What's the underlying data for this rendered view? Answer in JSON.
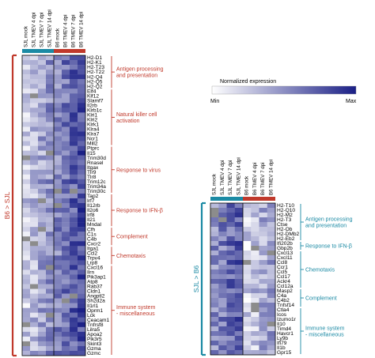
{
  "legend": {
    "title": "Normalized expression",
    "min_label": "Min",
    "max_label": "Max"
  },
  "colors": {
    "sjl": "#1b8aa4",
    "b6": "#c0392b",
    "heat_low": "#ffffff",
    "heat_high": "#1a1f86",
    "missing": "#8c8c8c"
  },
  "columns": [
    "SJL mock",
    "SJL TMEV 4 dpi",
    "SJL TMEV 7 dpi",
    "SJL TMEV 14 dpi",
    "B6 mock",
    "B6 TMEV 4 dpi",
    "B6 TMEV 7 dpi",
    "B6 TMEV 14 dpi"
  ],
  "left_panel": {
    "side_label": "B6 > SJL",
    "genes": [
      "H2-D1",
      "H2-K1",
      "H2-T23",
      "H2-T22",
      "H2-Q4",
      "H2-Q5",
      "H2-Q2",
      "Elf4",
      "Klf12",
      "Slamf7",
      "Il2rb",
      "Klrb1c",
      "Klri1",
      "Klri2",
      "Klrk1",
      "Klra4",
      "Klra7",
      "Ncr1",
      "Mill2",
      "Ptprc",
      "Il15",
      "Trim30d",
      "Rnasel",
      "Itgax",
      "Tlr9",
      "Tlr8",
      "Trim12c",
      "Trim34a",
      "Trim30c",
      "Tap2",
      "Irf7",
      "Il12rb",
      "Il2o6",
      "Irf8",
      "Il21",
      "Mndal",
      "Cfh",
      "C1s",
      "C4b",
      "Cxcr2",
      "Itga1",
      "Ccl2",
      "Trpv4",
      "Lrp8",
      "Cxcl16",
      "Ilrn",
      "Pik3ap1",
      "Atp8",
      "Rab37",
      "Cldn1",
      "Angptl2",
      "Sh2d2a",
      "Il1rl1",
      "Oprm1",
      "Lck",
      "Ceacam1",
      "Tnfrsf8",
      "Lilra5",
      "Apoa2",
      "Pik3r5",
      "Skint3",
      "Gzma",
      "Gzmc"
    ],
    "categories": [
      {
        "label": "Antigen processing|and presentation",
        "start": 0,
        "end": 6
      },
      {
        "label": "Natural killer cell|activation",
        "start": 7,
        "end": 18
      },
      {
        "label": "Response to virus",
        "start": 19,
        "end": 28
      },
      {
        "label": "Response to IFN-β",
        "start": 29,
        "end": 35
      },
      {
        "label": "Complement",
        "start": 36,
        "end": 39
      },
      {
        "label": "Chemotaxis",
        "start": 40,
        "end": 43
      },
      {
        "label": "Immune system|- miscellaneous",
        "start": 44,
        "end": 62
      }
    ]
  },
  "right_panel": {
    "side_label": "SJL > B6",
    "genes": [
      "H2-T10",
      "H2-Q10",
      "H2-M2",
      "H2-T3",
      "Ctse",
      "H2-Ob",
      "H2-DMb2",
      "H2-Eb2",
      "Ifi202b",
      "Gbp2b",
      "Cxcl13",
      "Cxcl11",
      "Ccl8",
      "Ccr1",
      "Ccl5",
      "Ccl17",
      "Ackr4",
      "Ccl12a",
      "Masp2",
      "C4a",
      "C4b2",
      "Tnfsf14",
      "Ctla4",
      "Icos",
      "Izumo1r",
      "Il10",
      "Timd4",
      "Havcr1",
      "Ly9b",
      "Ifi79",
      "Il1b",
      "Gpr15"
    ],
    "categories": [
      {
        "label": "Antigen processing|and presentation",
        "start": 0,
        "end": 7
      },
      {
        "label": "Response to IFN-β",
        "start": 8,
        "end": 9
      },
      {
        "label": "Chemotaxis",
        "start": 10,
        "end": 17
      },
      {
        "label": "Complement",
        "start": 18,
        "end": 21
      },
      {
        "label": "Immune system|- miscellaneous",
        "start": 22,
        "end": 31
      }
    ]
  }
}
